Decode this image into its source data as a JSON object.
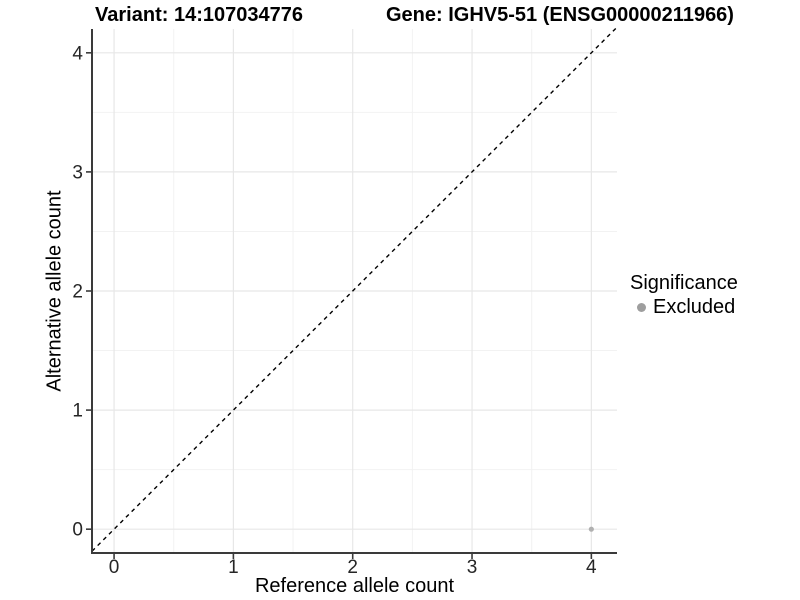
{
  "chart_data": {
    "type": "scatter",
    "title_left": "Variant: 14:107034776",
    "title_right": "Gene: IGHV5-51 (ENSG00000211966)",
    "xlabel": "Reference allele count",
    "ylabel": "Alternative allele count",
    "xlim": [
      -0.185,
      4.215
    ],
    "ylim": [
      -0.2,
      4.2
    ],
    "xticks": [
      0,
      1,
      2,
      3,
      4
    ],
    "yticks": [
      0,
      1,
      2,
      3,
      4
    ],
    "xminor": [
      0.5,
      1.5,
      2.5,
      3.5
    ],
    "yminor": [
      0.5,
      1.5,
      2.5,
      3.5
    ],
    "identity_line": {
      "from": [
        -0.185,
        -0.185
      ],
      "to": [
        4.215,
        4.215
      ],
      "style": "dashed",
      "color": "#000000"
    },
    "points": [
      {
        "x": 4,
        "y": 0,
        "significance": "Excluded",
        "color": "#b0b0b0"
      }
    ],
    "legend": {
      "title": "Significance",
      "position": "right",
      "items": [
        {
          "label": "Excluded",
          "color": "#9e9e9e"
        }
      ]
    },
    "grid": {
      "major_color": "#e7e7e7",
      "minor_color": "#f2f2f2",
      "background": "#ffffff"
    },
    "axis": {
      "line_color": "#3a3a3a",
      "tick_color": "#3a3a3a",
      "tick_label_color": "#262626"
    }
  }
}
